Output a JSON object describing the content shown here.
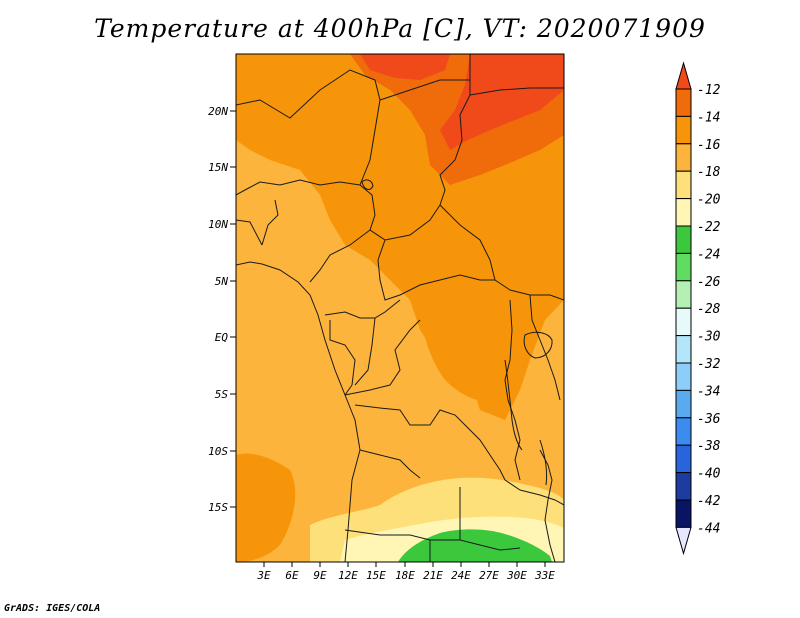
{
  "title": "Temperature at 400hPa [C], VT: 2020071909",
  "credit": "GrADS: IGES/COLA",
  "map": {
    "lat_labels": [
      "20N",
      "15N",
      "10N",
      "5N",
      "EQ",
      "5S",
      "10S",
      "15S"
    ],
    "lon_labels": [
      "3E",
      "6E",
      "9E",
      "12E",
      "15E",
      "18E",
      "21E",
      "24E",
      "27E",
      "30E",
      "33E"
    ]
  },
  "colorbar": {
    "labels": [
      "-12",
      "-14",
      "-16",
      "-18",
      "-20",
      "-22",
      "-24",
      "-26",
      "-28",
      "-30",
      "-32",
      "-34",
      "-36",
      "-38",
      "-40",
      "-42",
      "-44"
    ],
    "colors": [
      "#f0491a",
      "#f06b0a",
      "#f6950a",
      "#fcb43c",
      "#fde07a",
      "#fff5b4",
      "#3cc83c",
      "#60dc60",
      "#b4f0b4",
      "#e6fafa",
      "#b4e6fa",
      "#8ccdfa",
      "#5aaaf0",
      "#3c8cf0",
      "#2864dc",
      "#1e3ca0",
      "#0a1464",
      "#e6e6ff"
    ]
  }
}
